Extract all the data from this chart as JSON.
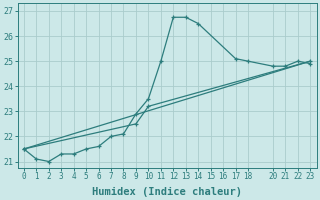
{
  "xlabel": "Humidex (Indice chaleur)",
  "bg_color": "#cce8e8",
  "grid_color": "#aacccc",
  "line_color": "#2d7d7d",
  "xlim": [
    -0.5,
    23.5
  ],
  "ylim": [
    20.75,
    27.3
  ],
  "xticks": [
    0,
    1,
    2,
    3,
    4,
    5,
    6,
    7,
    8,
    9,
    10,
    11,
    12,
    13,
    14,
    15,
    16,
    17,
    18,
    20,
    21,
    22,
    23
  ],
  "yticks": [
    21,
    22,
    23,
    24,
    25,
    26,
    27
  ],
  "series1_x": [
    0,
    1,
    2,
    3,
    4,
    5,
    6,
    7,
    8,
    9,
    10,
    11,
    12,
    13,
    14,
    17,
    18,
    20,
    21,
    22,
    23
  ],
  "series1_y": [
    21.5,
    21.1,
    21.0,
    21.3,
    21.3,
    21.5,
    21.6,
    22.0,
    22.1,
    22.9,
    23.5,
    25.0,
    26.75,
    26.75,
    26.5,
    25.1,
    25.0,
    24.8,
    24.8,
    25.0,
    24.9
  ],
  "series2_x": [
    0,
    23
  ],
  "series2_y": [
    21.5,
    25.0
  ],
  "series3_x": [
    0,
    9,
    10,
    23
  ],
  "series3_y": [
    21.5,
    22.5,
    23.2,
    25.0
  ]
}
